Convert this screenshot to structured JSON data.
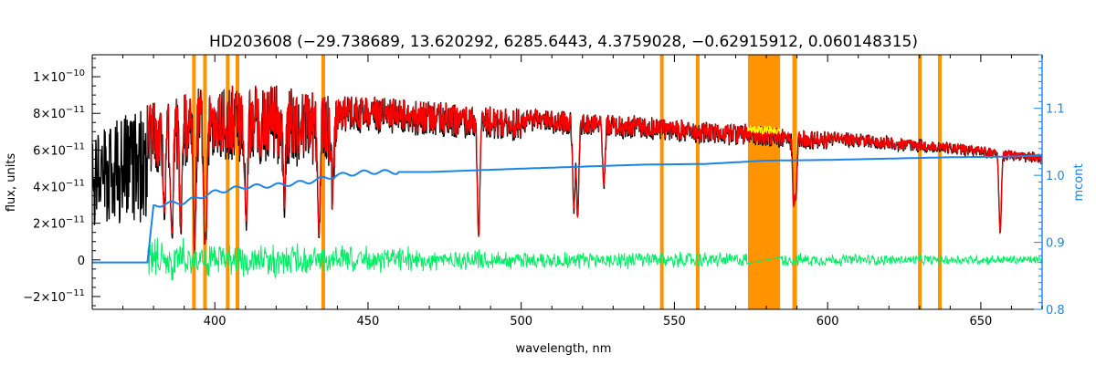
{
  "chart_data": {
    "type": "line",
    "title": "HD203608    (−29.738689, 13.620292, 6285.6443, 4.3759028, −0.62915912, 0.060148315)",
    "xlabel": "wavelength, nm",
    "ylabel": "flux, units",
    "ylabel_right": "mcont",
    "xlim": [
      360,
      670
    ],
    "ylim": [
      -2.7e-11,
      1.12e-10
    ],
    "ylim_right": [
      0.8,
      1.18
    ],
    "x_ticks": [
      400,
      450,
      500,
      550,
      600,
      650
    ],
    "x_tick_labels": [
      "400",
      "450",
      "500",
      "550",
      "600",
      "650"
    ],
    "y_ticks": [
      -2e-11,
      0,
      2e-11,
      4e-11,
      6e-11,
      8e-11,
      1e-10
    ],
    "y_tick_labels": [
      {
        "mant": "−2×10",
        "exp": "−11"
      },
      {
        "mant": "0",
        "exp": ""
      },
      {
        "mant": "2×10",
        "exp": "−11"
      },
      {
        "mant": "4×10",
        "exp": "−11"
      },
      {
        "mant": "6×10",
        "exp": "−11"
      },
      {
        "mant": "8×10",
        "exp": "−11"
      },
      {
        "mant": "1×10",
        "exp": "−10"
      }
    ],
    "y_ticks_right": [
      0.8,
      0.9,
      1.0,
      1.1
    ],
    "y_tick_labels_right": [
      "0.8",
      "0.9",
      "1.0",
      "1.1"
    ],
    "masked_regions": [
      {
        "x0": 392.6,
        "x1": 393.8
      },
      {
        "x0": 396.2,
        "x1": 397.4
      },
      {
        "x0": 403.6,
        "x1": 404.8
      },
      {
        "x0": 406.8,
        "x1": 408.0
      },
      {
        "x0": 434.8,
        "x1": 436.0
      },
      {
        "x0": 545.3,
        "x1": 546.5
      },
      {
        "x0": 557.0,
        "x1": 558.2
      },
      {
        "x0": 574.0,
        "x1": 584.5
      },
      {
        "x0": 588.5,
        "x1": 590.0
      },
      {
        "x0": 629.5,
        "x1": 630.7
      },
      {
        "x0": 636.0,
        "x1": 637.2
      }
    ],
    "series": [
      {
        "role": "observed_flux",
        "color": "#000000",
        "x_range": [
          360,
          670
        ],
        "continuum_x": [
          360,
          380,
          400,
          420,
          440,
          460,
          480,
          500,
          520,
          540,
          560,
          580,
          600,
          620,
          640,
          660,
          670
        ],
        "continuum_y": [
          7e-11,
          8.6e-11,
          9.7e-11,
          9.5e-11,
          9e-11,
          8.8e-11,
          8.5e-11,
          8.3e-11,
          8e-11,
          7.8e-11,
          7.5e-11,
          7.3e-11,
          7e-11,
          6.7e-11,
          6.4e-11,
          6e-11,
          5.8e-11
        ],
        "lines": [
          {
            "x": 383.5,
            "y": 3e-11
          },
          {
            "x": 386.0,
            "y": 1.5e-11
          },
          {
            "x": 388.9,
            "y": 2e-11
          },
          {
            "x": 393.4,
            "y": 5e-12
          },
          {
            "x": 396.8,
            "y": 1e-11
          },
          {
            "x": 397.0,
            "y": 1.5e-11
          },
          {
            "x": 410.2,
            "y": 2.5e-11
          },
          {
            "x": 422.7,
            "y": 4e-11
          },
          {
            "x": 434.0,
            "y": 2e-11
          },
          {
            "x": 438.4,
            "y": 4.5e-11
          },
          {
            "x": 486.1,
            "y": 1.4e-11
          },
          {
            "x": 517.2,
            "y": 3e-11
          },
          {
            "x": 518.4,
            "y": 2.5e-11
          },
          {
            "x": 527.0,
            "y": 4.5e-11
          },
          {
            "x": 589.0,
            "y": 3e-11
          },
          {
            "x": 589.6,
            "y": 3.5e-11
          },
          {
            "x": 656.3,
            "y": 1.5e-11
          }
        ]
      },
      {
        "role": "model_flux",
        "color": "#ff0000",
        "x_range": [
          378,
          670
        ]
      },
      {
        "role": "mcont",
        "color": "#1c84e3",
        "axis": "right",
        "x": [
          360,
          378,
          380,
          390,
          400,
          410,
          420,
          430,
          440,
          450,
          470,
          500,
          520,
          540,
          560,
          580,
          600,
          620,
          640,
          660,
          670
        ],
        "y": [
          0.87,
          0.87,
          0.955,
          0.96,
          0.975,
          0.983,
          0.985,
          0.99,
          1.0,
          1.005,
          1.005,
          1.01,
          1.013,
          1.016,
          1.017,
          1.022,
          1.023,
          1.025,
          1.027,
          1.028,
          1.03
        ]
      },
      {
        "role": "residual",
        "color": "#00ee66",
        "x_range": [
          378,
          670
        ],
        "amplitude": [
          {
            "x": 380,
            "a": 1.3e-11
          },
          {
            "x": 420,
            "a": 1e-11
          },
          {
            "x": 460,
            "a": 8e-12
          },
          {
            "x": 500,
            "a": 6e-12
          },
          {
            "x": 560,
            "a": 5e-12
          },
          {
            "x": 620,
            "a": 3.5e-12
          },
          {
            "x": 670,
            "a": 3e-12
          }
        ]
      },
      {
        "role": "excluded_model",
        "color": "#ffff00",
        "x_range": [
          574,
          584.5
        ]
      }
    ],
    "mask_color": "#ff9400"
  }
}
